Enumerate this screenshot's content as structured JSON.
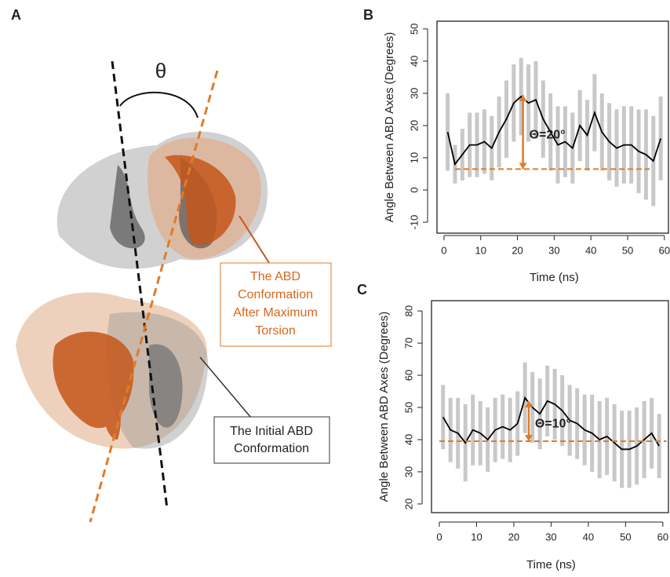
{
  "panel_a": {
    "panel_label": "A",
    "angle_symbol": "θ",
    "orange_label": [
      "The ABD",
      " Conformation",
      "After Maximum",
      "Torsion"
    ],
    "gray_label": [
      "The Initial ABD",
      "Conformation"
    ]
  },
  "chart_data": [
    {
      "type": "line",
      "panel_label": "B",
      "xlabel": "Time (ns)",
      "ylabel": "Angle Between ABD Axes (Degrees)",
      "x": [
        1,
        3,
        5,
        7,
        9,
        11,
        13,
        15,
        17,
        19,
        21,
        23,
        25,
        27,
        29,
        31,
        33,
        35,
        37,
        39,
        41,
        43,
        45,
        47,
        49,
        51,
        53,
        55,
        57,
        59
      ],
      "values": [
        18,
        8,
        11,
        14,
        14,
        15,
        13,
        18,
        22,
        27,
        29,
        27,
        28,
        22,
        18,
        14,
        15,
        13,
        20,
        17,
        24,
        18,
        15,
        13,
        14,
        14,
        12,
        11,
        9,
        16
      ],
      "errors": [
        12,
        6,
        8,
        10,
        10,
        10,
        10,
        11,
        12,
        12,
        12,
        12,
        12,
        12,
        12,
        12,
        11,
        11,
        11,
        11,
        12,
        12,
        12,
        12,
        12,
        12,
        13,
        14,
        14,
        13
      ],
      "line_color": "#000000",
      "error_color": "#bbbbbb",
      "xlim": [
        -1.9,
        61.1
      ],
      "ylim": [
        -13.4,
        52.4
      ],
      "xticks": [
        0,
        10,
        20,
        30,
        40,
        50,
        60
      ],
      "yticks": [
        -10,
        0,
        10,
        20,
        30,
        40,
        50
      ],
      "reference_line": {
        "value": 6.5,
        "x": [
          3,
          56
        ],
        "color": "#e07b28"
      },
      "arrow": {
        "x": 21.5,
        "y": [
          6.5,
          29.5
        ],
        "color": "#e07b28"
      },
      "annotation": "Θ=20°"
    },
    {
      "type": "line",
      "panel_label": "C",
      "xlabel": "Time (ns)",
      "ylabel": "Angle Between ABD Axes (Degrees)",
      "x": [
        1,
        3,
        5,
        7,
        9,
        11,
        13,
        15,
        17,
        19,
        21,
        23,
        25,
        27,
        29,
        31,
        33,
        35,
        37,
        39,
        41,
        43,
        45,
        47,
        49,
        51,
        53,
        55,
        57,
        59
      ],
      "values": [
        47,
        43,
        42,
        39,
        43,
        42,
        40,
        43,
        44,
        43,
        45,
        53,
        50,
        48,
        52,
        51,
        49,
        46,
        45,
        43,
        42,
        40,
        41,
        39,
        37,
        37,
        38,
        40,
        42,
        38
      ],
      "errors": [
        10,
        10,
        11,
        12,
        11,
        10,
        10,
        10,
        10,
        10,
        10,
        11,
        11,
        11,
        11,
        11,
        11,
        11,
        11,
        11,
        12,
        12,
        12,
        12,
        12,
        12,
        12,
        12,
        11,
        10
      ],
      "line_color": "#000000",
      "error_color": "#bbbbbb",
      "xlim": [
        -2.1,
        61.5
      ],
      "ylim": [
        17.3,
        83.2
      ],
      "xticks": [
        0,
        10,
        20,
        30,
        40,
        50,
        60
      ],
      "yticks": [
        20,
        30,
        40,
        50,
        60,
        70,
        80
      ],
      "reference_line": {
        "value": 39.5,
        "x": [
          0,
          61
        ],
        "color": "#e07b28"
      },
      "arrow": {
        "x": 24,
        "y": [
          39.5,
          52
        ],
        "color": "#e07b28"
      },
      "annotation": "Θ=10°"
    }
  ]
}
